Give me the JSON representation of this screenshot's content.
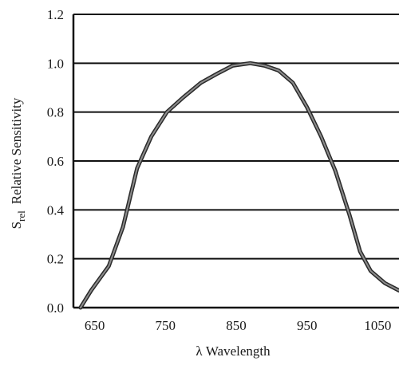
{
  "chart_data": {
    "type": "line",
    "title": "",
    "xlabel": "λ Wavelength",
    "ylabel_symbol": "S",
    "ylabel_subscript": "rel",
    "ylabel_text": "Relative Sensitivity",
    "xlim": [
      620,
      1080
    ],
    "ylim": [
      0,
      1.2
    ],
    "x_ticks": [
      650,
      750,
      850,
      950,
      1050
    ],
    "x_tick_labels": [
      "650",
      "750",
      "850",
      "950",
      "1050"
    ],
    "y_ticks": [
      0,
      0.2,
      0.4,
      0.6,
      0.8,
      1.0,
      1.2
    ],
    "y_tick_labels": [
      "0.0",
      "0.2",
      "0.4",
      "0.6",
      "0.8",
      "1.0",
      "1.2"
    ],
    "grid": "horizontal",
    "series": [
      {
        "x": [
          630,
          645,
          670,
          690,
          710,
          730,
          752,
          775,
          800,
          825,
          845,
          870,
          890,
          910,
          930,
          950,
          970,
          990,
          1010,
          1025,
          1040,
          1060,
          1080
        ],
        "y": [
          0.0,
          0.07,
          0.17,
          0.33,
          0.57,
          0.7,
          0.8,
          0.86,
          0.92,
          0.96,
          0.99,
          1.0,
          0.99,
          0.97,
          0.92,
          0.82,
          0.7,
          0.56,
          0.38,
          0.23,
          0.15,
          0.1,
          0.07
        ]
      }
    ]
  }
}
